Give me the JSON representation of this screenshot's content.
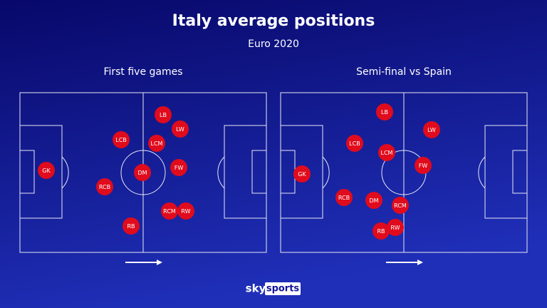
{
  "title": "Italy average positions",
  "subtitle": "Euro 2020",
  "pitches": [
    {
      "title": "First five games",
      "players": [
        "LB",
        "LW",
        "LCB",
        "LCM",
        "GK",
        "DM",
        "FW",
        "RCB",
        "RCM",
        "RW",
        "RB"
      ]
    },
    {
      "title": "Semi-final vs Spain",
      "players": [
        "LB",
        "LW",
        "LCB",
        "LCM",
        "FW",
        "GK",
        "RCB",
        "DM",
        "RCM",
        "RB",
        "RW"
      ]
    }
  ],
  "logo": {
    "brand": "sky",
    "product": "sports"
  }
}
